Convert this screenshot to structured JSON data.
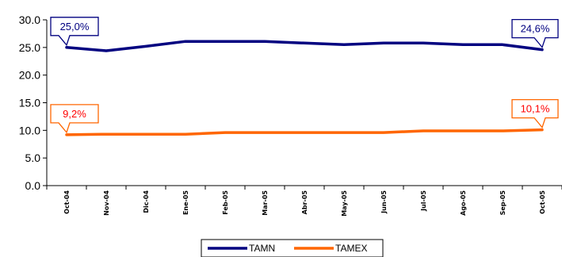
{
  "chart_data": {
    "type": "line",
    "categories": [
      "Oct-04",
      "Nov-04",
      "Dic-04",
      "Ene-05",
      "Feb-05",
      "Mar-05",
      "Abr-05",
      "May-05",
      "Jun-05",
      "Jul-05",
      "Ago-05",
      "Sep-05",
      "Oct-05"
    ],
    "yticks": [
      "0.0",
      "5.0",
      "10.0",
      "15.0",
      "20.0",
      "25.0",
      "30.0"
    ],
    "ylim": [
      0,
      30
    ],
    "grid": false,
    "legend_position": "bottom-center",
    "series": [
      {
        "name": "TAMN",
        "color": "#000080",
        "values": [
          25.0,
          24.4,
          25.2,
          26.1,
          26.1,
          26.1,
          25.8,
          25.5,
          25.8,
          25.8,
          25.5,
          25.5,
          24.6
        ]
      },
      {
        "name": "TAMEX",
        "color": "#FF6600",
        "values": [
          9.2,
          9.3,
          9.3,
          9.3,
          9.6,
          9.6,
          9.6,
          9.6,
          9.6,
          9.9,
          9.9,
          9.9,
          10.1
        ]
      }
    ],
    "annotations": [
      {
        "series": 0,
        "point": 0,
        "text": "25,0%",
        "text_color": "#000080",
        "border_color": "#000080"
      },
      {
        "series": 0,
        "point": 12,
        "text": "24,6%",
        "text_color": "#000080",
        "border_color": "#000080"
      },
      {
        "series": 1,
        "point": 0,
        "text": "9,2%",
        "text_color": "#FF0000",
        "border_color": "#FF6600"
      },
      {
        "series": 1,
        "point": 12,
        "text": "10,1%",
        "text_color": "#FF0000",
        "border_color": "#FF6600"
      }
    ]
  }
}
